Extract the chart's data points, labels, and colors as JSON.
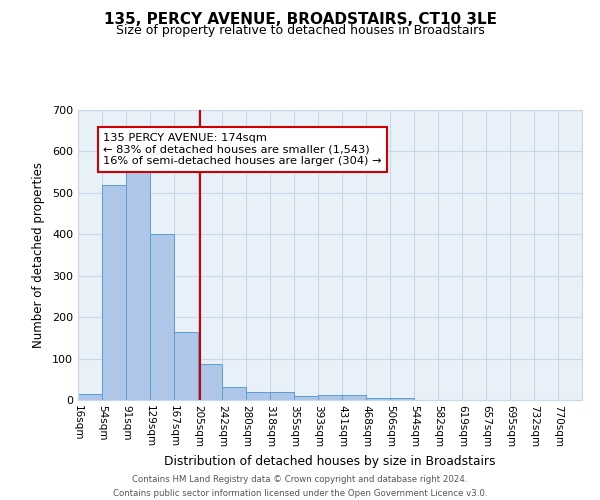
{
  "title": "135, PERCY AVENUE, BROADSTAIRS, CT10 3LE",
  "subtitle": "Size of property relative to detached houses in Broadstairs",
  "xlabel": "Distribution of detached houses by size in Broadstairs",
  "ylabel": "Number of detached properties",
  "bin_labels": [
    "16sqm",
    "54sqm",
    "91sqm",
    "129sqm",
    "167sqm",
    "205sqm",
    "242sqm",
    "280sqm",
    "318sqm",
    "355sqm",
    "393sqm",
    "431sqm",
    "468sqm",
    "506sqm",
    "544sqm",
    "582sqm",
    "619sqm",
    "657sqm",
    "695sqm",
    "732sqm",
    "770sqm"
  ],
  "bar_values": [
    15,
    520,
    580,
    400,
    165,
    87,
    32,
    20,
    20,
    10,
    13,
    13,
    5,
    5,
    0,
    0,
    0,
    0,
    0,
    0,
    0
  ],
  "bar_color": "#aec6e8",
  "bar_edge_color": "#5a9fd4",
  "property_line_x": 4.57,
  "annotation_text": "135 PERCY AVENUE: 174sqm\n← 83% of detached houses are smaller (1,543)\n16% of semi-detached houses are larger (304) →",
  "annotation_box_color": "#ffffff",
  "annotation_box_edge": "#cc0000",
  "vline_color": "#cc0000",
  "grid_color": "#c8d8e8",
  "bg_color": "#e8f0f8",
  "footer_text": "Contains HM Land Registry data © Crown copyright and database right 2024.\nContains public sector information licensed under the Open Government Licence v3.0.",
  "ylim": [
    0,
    700
  ],
  "yticks": [
    0,
    100,
    200,
    300,
    400,
    500,
    600,
    700
  ]
}
